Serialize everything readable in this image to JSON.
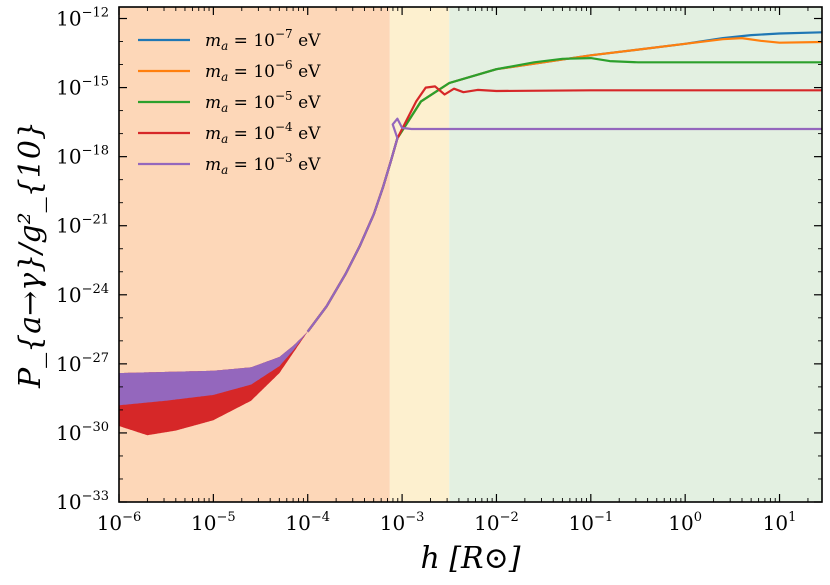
{
  "chart_data": {
    "type": "line",
    "title": "",
    "xlabel": "h [R⊙]",
    "ylabel": "P_{a→γ}/g²_{10}",
    "xscale": "log",
    "yscale": "log",
    "xlim_log10": [
      -6,
      1.45
    ],
    "ylim_log10": [
      -33,
      -11.5
    ],
    "x_ticks": [
      {
        "exp": -6,
        "label": "10",
        "sup": "−6"
      },
      {
        "exp": -5,
        "label": "10",
        "sup": "−5"
      },
      {
        "exp": -4,
        "label": "10",
        "sup": "−4"
      },
      {
        "exp": -3,
        "label": "10",
        "sup": "−3"
      },
      {
        "exp": -2,
        "label": "10",
        "sup": "−2"
      },
      {
        "exp": -1,
        "label": "10",
        "sup": "−1"
      },
      {
        "exp": 0,
        "label": "10",
        "sup": "0"
      },
      {
        "exp": 1,
        "label": "10",
        "sup": "1"
      }
    ],
    "y_ticks": [
      {
        "exp": -33,
        "label": "10",
        "sup": "−33"
      },
      {
        "exp": -30,
        "label": "10",
        "sup": "−30"
      },
      {
        "exp": -27,
        "label": "10",
        "sup": "−27"
      },
      {
        "exp": -24,
        "label": "10",
        "sup": "−24"
      },
      {
        "exp": -21,
        "label": "10",
        "sup": "−21"
      },
      {
        "exp": -18,
        "label": "10",
        "sup": "−18"
      },
      {
        "exp": -15,
        "label": "10",
        "sup": "−15"
      },
      {
        "exp": -12,
        "label": "10",
        "sup": "−12"
      }
    ],
    "regions": [
      {
        "name": "region-1",
        "from_log10": -6,
        "to_log10": -3.13,
        "color": "#fdd7b8"
      },
      {
        "name": "region-2",
        "from_log10": -3.13,
        "to_log10": -2.5,
        "color": "#fdf0cf"
      },
      {
        "name": "region-3",
        "from_log10": -2.5,
        "to_log10": 1.45,
        "color": "#e3f0e1"
      }
    ],
    "legend": {
      "position": "top-left",
      "entries": [
        {
          "prefix": "m",
          "sub": "a",
          "mid": " = 10",
          "sup": "−7",
          "unit": " eV",
          "color": "#1f77b4"
        },
        {
          "prefix": "m",
          "sub": "a",
          "mid": " = 10",
          "sup": "−6",
          "unit": " eV",
          "color": "#ff7f0e"
        },
        {
          "prefix": "m",
          "sub": "a",
          "mid": " = 10",
          "sup": "−5",
          "unit": " eV",
          "color": "#2ca02c"
        },
        {
          "prefix": "m",
          "sub": "a",
          "mid": " = 10",
          "sup": "−4",
          "unit": " eV",
          "color": "#d62728"
        },
        {
          "prefix": "m",
          "sub": "a",
          "mid": " = 10",
          "sup": "−3",
          "unit": " eV",
          "color": "#9467bd"
        }
      ]
    },
    "series": [
      {
        "name": "m_a = 1e-7 eV",
        "color": "#1f77b4",
        "points": [
          [
            -3.05,
            -17.2
          ],
          [
            -2.8,
            -15.6
          ],
          [
            -2.5,
            -14.8
          ],
          [
            -2.0,
            -14.2
          ],
          [
            -1.5,
            -13.9
          ],
          [
            -1.0,
            -13.6
          ],
          [
            -0.5,
            -13.35
          ],
          [
            0.0,
            -13.1
          ],
          [
            0.4,
            -12.85
          ],
          [
            0.7,
            -12.72
          ],
          [
            1.0,
            -12.65
          ],
          [
            1.45,
            -12.6
          ]
        ]
      },
      {
        "name": "m_a = 1e-6 eV",
        "color": "#ff7f0e",
        "points": [
          [
            -3.05,
            -17.2
          ],
          [
            -2.8,
            -15.6
          ],
          [
            -2.5,
            -14.8
          ],
          [
            -2.0,
            -14.2
          ],
          [
            -1.5,
            -13.9
          ],
          [
            -1.0,
            -13.6
          ],
          [
            -0.5,
            -13.35
          ],
          [
            0.0,
            -13.1
          ],
          [
            0.4,
            -12.9
          ],
          [
            0.6,
            -12.85
          ],
          [
            0.8,
            -12.97
          ],
          [
            1.0,
            -13.05
          ],
          [
            1.45,
            -13.02
          ]
        ]
      },
      {
        "name": "m_a = 1e-5 eV",
        "color": "#2ca02c",
        "points": [
          [
            -3.05,
            -17.2
          ],
          [
            -2.8,
            -15.6
          ],
          [
            -2.5,
            -14.8
          ],
          [
            -2.0,
            -14.2
          ],
          [
            -1.6,
            -13.9
          ],
          [
            -1.3,
            -13.75
          ],
          [
            -1.0,
            -13.72
          ],
          [
            -0.8,
            -13.85
          ],
          [
            -0.5,
            -13.9
          ],
          [
            0.0,
            -13.9
          ],
          [
            0.5,
            -13.9
          ],
          [
            1.0,
            -13.9
          ],
          [
            1.45,
            -13.9
          ]
        ]
      },
      {
        "name": "m_a = 1e-4 eV",
        "color": "#d62728",
        "points": [
          [
            -3.05,
            -17.2
          ],
          [
            -2.85,
            -15.6
          ],
          [
            -2.75,
            -15.0
          ],
          [
            -2.65,
            -14.95
          ],
          [
            -2.55,
            -15.3
          ],
          [
            -2.45,
            -15.05
          ],
          [
            -2.35,
            -15.2
          ],
          [
            -2.2,
            -15.1
          ],
          [
            -2.0,
            -15.15
          ],
          [
            -1.0,
            -15.12
          ],
          [
            0.0,
            -15.12
          ],
          [
            1.0,
            -15.12
          ],
          [
            1.45,
            -15.12
          ]
        ]
      },
      {
        "name": "m_a = 1e-3 eV",
        "color": "#9467bd",
        "points": [
          [
            -3.1,
            -16.6
          ],
          [
            -3.05,
            -16.35
          ],
          [
            -3.0,
            -16.75
          ],
          [
            -2.9,
            -16.8
          ],
          [
            -2.0,
            -16.8
          ],
          [
            -1.0,
            -16.8
          ],
          [
            0.0,
            -16.8
          ],
          [
            1.0,
            -16.8
          ],
          [
            1.45,
            -16.8
          ]
        ]
      }
    ],
    "shared_rise": [
      [
        -4.0,
        -25.6
      ],
      [
        -3.8,
        -24.5
      ],
      [
        -3.6,
        -23.1
      ],
      [
        -3.45,
        -21.9
      ],
      [
        -3.3,
        -20.5
      ],
      [
        -3.2,
        -19.3
      ],
      [
        -3.12,
        -18.2
      ],
      [
        -3.05,
        -17.2
      ]
    ],
    "low_envelope": {
      "purple_top": [
        [
          -6,
          -27.4
        ],
        [
          -5.5,
          -27.35
        ],
        [
          -5,
          -27.3
        ],
        [
          -4.6,
          -27.15
        ],
        [
          -4.3,
          -26.7
        ],
        [
          -4.15,
          -26.2
        ],
        [
          -4.0,
          -25.6
        ]
      ],
      "purple_bottom": [
        [
          -6,
          -28.8
        ],
        [
          -5.5,
          -28.6
        ],
        [
          -5,
          -28.35
        ],
        [
          -4.6,
          -27.9
        ],
        [
          -4.3,
          -27.1
        ],
        [
          -4.15,
          -26.4
        ],
        [
          -4.0,
          -25.6
        ]
      ],
      "red_bottom": [
        [
          -6,
          -29.7
        ],
        [
          -5.7,
          -30.1
        ],
        [
          -5.4,
          -29.9
        ],
        [
          -5.0,
          -29.45
        ],
        [
          -4.6,
          -28.6
        ],
        [
          -4.3,
          -27.4
        ],
        [
          -4.15,
          -26.5
        ],
        [
          -4.0,
          -25.6
        ]
      ]
    }
  }
}
